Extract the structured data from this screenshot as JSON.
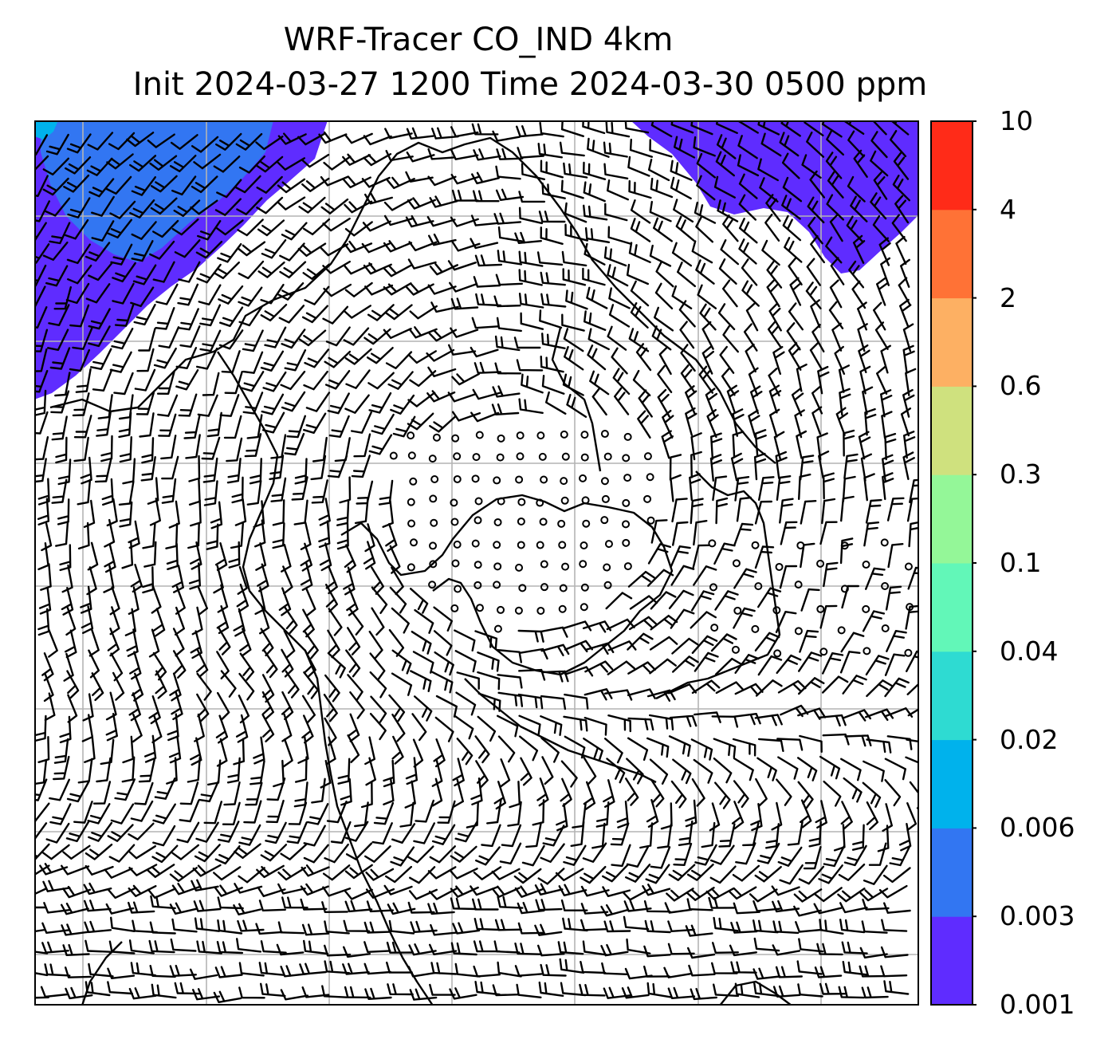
{
  "title": {
    "line1": "WRF-Tracer CO_IND 4km",
    "line2": "Init 2024-03-27 1200 Time 2024-03-30 0500 ppm"
  },
  "colorbar": {
    "levels": [
      "0.001",
      "0.003",
      "0.006",
      "0.02",
      "0.04",
      "0.1",
      "0.3",
      "0.6",
      "2",
      "4",
      "10"
    ],
    "colors": [
      "#5f2cff",
      "#3276f2",
      "#00b2ec",
      "#2edbd2",
      "#62f7b8",
      "#94f798",
      "#cfe17e",
      "#fdb063",
      "#ff7236",
      "#ff2b18"
    ]
  },
  "colors": {
    "tracer_low": "#5f2cff",
    "tracer_mid": "#3276f2",
    "tracer_peak": "#00b2ec",
    "gridline": "#b4b4b4",
    "barb": "#000000"
  },
  "map_features": [
    "coastlines",
    "lat-lon gridlines",
    "wind barbs",
    "CO_IND tracer shading"
  ]
}
